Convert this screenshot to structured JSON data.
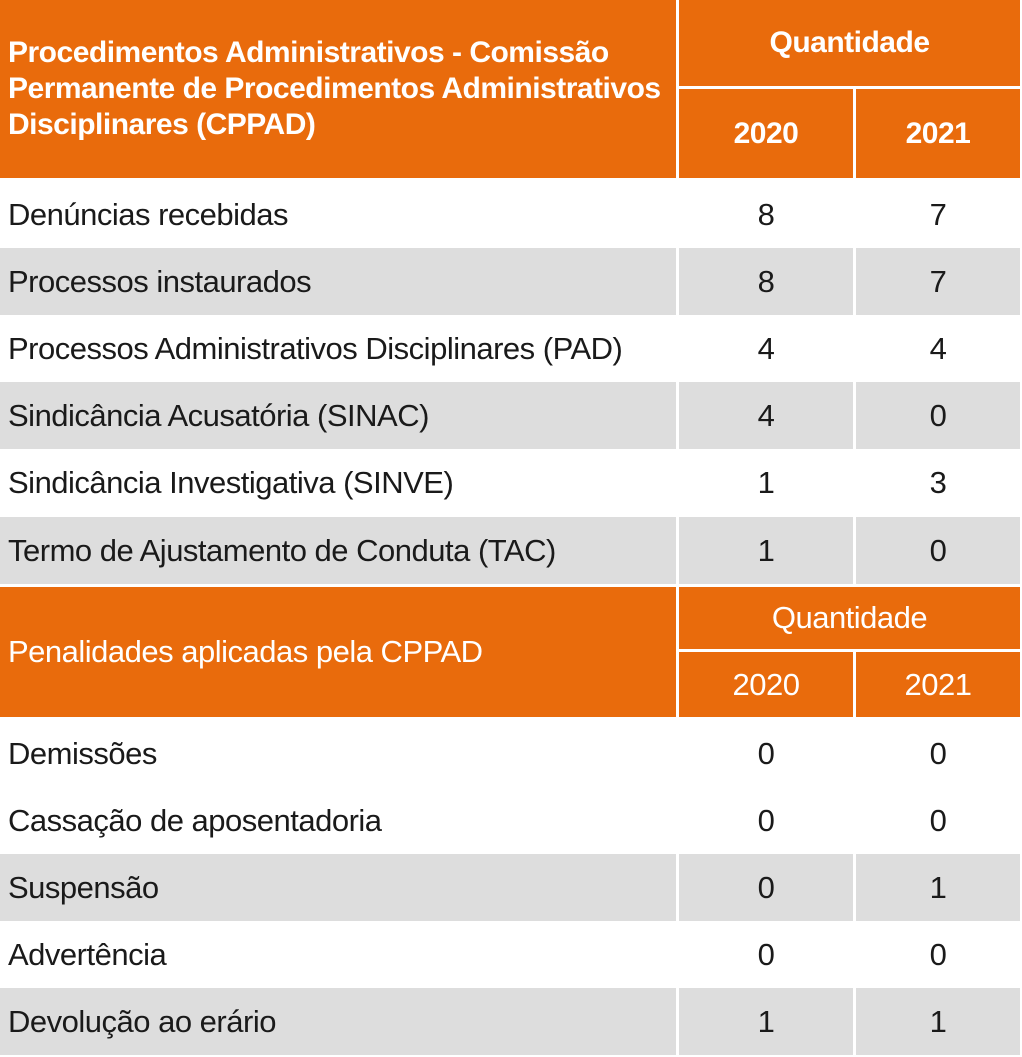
{
  "section1": {
    "title": "Procedimentos Administrativos - Comissão Permanente de Procedimentos Administrativos Disciplinares (CPPAD)",
    "quantity_header": "Quantidade",
    "year_2020": "2020",
    "year_2021": "2021",
    "rows": [
      {
        "label": "Denúncias recebidas",
        "v2020": "8",
        "v2021": "7"
      },
      {
        "label": "Processos instaurados",
        "v2020": "8",
        "v2021": "7"
      },
      {
        "label": "Processos Administrativos Disciplinares (PAD)",
        "v2020": "4",
        "v2021": "4"
      },
      {
        "label": "Sindicância Acusatória (SINAC)",
        "v2020": "4",
        "v2021": "0"
      },
      {
        "label": "Sindicância Investigativa (SINVE)",
        "v2020": "1",
        "v2021": "3"
      },
      {
        "label": "Termo de Ajustamento de Conduta (TAC)",
        "v2020": "1",
        "v2021": "0"
      }
    ]
  },
  "section2": {
    "title": "Penalidades aplicadas pela CPPAD",
    "quantity_header": "Quantidade",
    "year_2020": "2020",
    "year_2021": "2021",
    "rows": [
      {
        "label": "Demissões",
        "v2020": "0",
        "v2021": "0"
      },
      {
        "label": "Cassação de aposentadoria",
        "v2020": "0",
        "v2021": "0"
      },
      {
        "label": "Suspensão",
        "v2020": "0",
        "v2021": "1"
      },
      {
        "label": "Advertência",
        "v2020": "0",
        "v2021": "0"
      },
      {
        "label": "Devolução ao erário",
        "v2020": "1",
        "v2021": "1"
      }
    ]
  },
  "colors": {
    "header_bg": "#e96b0c",
    "header_text": "#ffffff",
    "row_shade": "#dddddd",
    "row_white": "#ffffff",
    "text": "#1a1a1a"
  }
}
